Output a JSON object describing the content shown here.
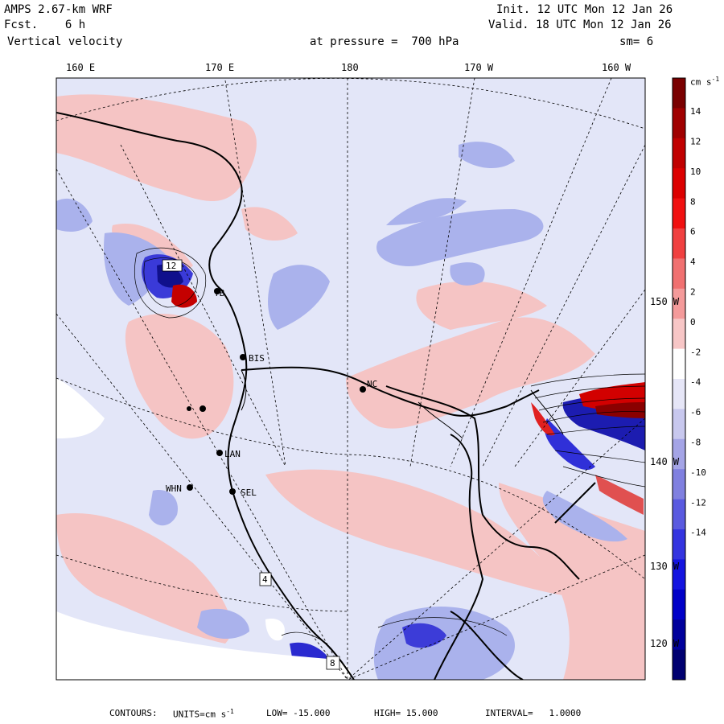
{
  "header": {
    "model": "AMPS 2.67-km WRF",
    "forecast": "Fcst.    6 h",
    "variable": "Vertical velocity",
    "init": "Init. 12 UTC Mon 12 Jan 26",
    "valid": "Valid. 18 UTC Mon 12 Jan 26",
    "level": "at pressure =  700 hPa",
    "smoothing": "sm= 6"
  },
  "longitude_labels": [
    "160 E",
    "170 E",
    "180",
    "170 W",
    "160 W"
  ],
  "latitude_labels": [
    "150 W",
    "140 W",
    "130 W",
    "120 W"
  ],
  "stations": [
    {
      "id": "TB"
    },
    {
      "id": "BIS"
    },
    {
      "id": "NC"
    },
    {
      "id": "LAN"
    },
    {
      "id": "WHN"
    },
    {
      "id": "SEL"
    }
  ],
  "boxed_labels": [
    "12",
    "4",
    "8"
  ],
  "colorbar": {
    "units": "cm s",
    "exponent": "-1",
    "tick_labels": [
      "14",
      "12",
      "10",
      "8",
      "6",
      "4",
      "2",
      "0",
      "-2",
      "-4",
      "-6",
      "-8",
      "-10",
      "-12",
      "-14"
    ],
    "colors": [
      "#7a0000",
      "#a00000",
      "#c00000",
      "#dc0000",
      "#f01010",
      "#f04040",
      "#f07070",
      "#f49a9a",
      "#f7c6c6",
      "#ffffff",
      "#e6e6f7",
      "#c8c8ee",
      "#a4a4e6",
      "#8080e0",
      "#5a5ae0",
      "#3434e0",
      "#1414e0",
      "#0000c8",
      "#00009c",
      "#000070"
    ]
  },
  "footer": {
    "contours": "CONTOURS:",
    "units_label": "UNITS=cm s",
    "units_exp": "-1",
    "low": "LOW= -15.000",
    "high": "HIGH= 15.000",
    "interval": "INTERVAL=   1.0000"
  },
  "palette": {
    "background": "#e3e6f8",
    "updraft": "#f5c4c4",
    "strong_updraft": "#c20000",
    "downdraft": "#9ea6e8",
    "strong_downdraft": "#1a1ad0",
    "land_ice": "#ffffff"
  }
}
